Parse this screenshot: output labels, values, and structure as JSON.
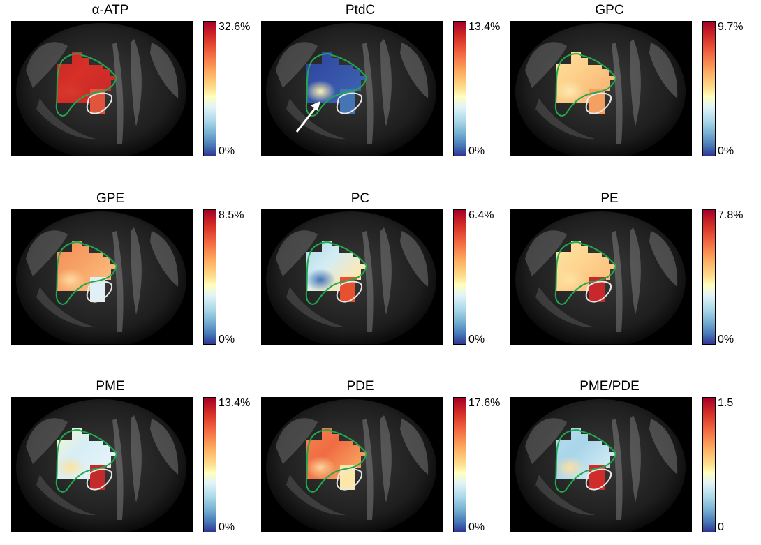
{
  "panels": [
    {
      "title": "α-ATP",
      "max": "32.6%",
      "min": "0%",
      "arrow": false,
      "fill": [
        "#c0262a",
        "#d73027",
        "#cc2b29",
        "#d63a2e",
        "#c42a2a"
      ],
      "tumor": "#e0553c"
    },
    {
      "title": "PtdC",
      "max": "13.4%",
      "min": "0%",
      "arrow": true,
      "fill": [
        "#2c3e9a",
        "#3552a8",
        "#3a5fb0",
        "#fdf2b0",
        "#3a5fb0"
      ],
      "tumor": "#4575b4"
    },
    {
      "title": "GPC",
      "max": "9.7%",
      "min": "0%",
      "arrow": false,
      "fill": [
        "#fde3a0",
        "#fdd08a",
        "#f9b978",
        "#fde9b0",
        "#fbc78a"
      ],
      "tumor": "#f4a060"
    },
    {
      "title": "GPE",
      "max": "8.5%",
      "min": "0%",
      "arrow": false,
      "fill": [
        "#f58a55",
        "#f6a065",
        "#fbb878",
        "#fdd9a0",
        "#f99a5f"
      ],
      "tumor": "#e0f0f6"
    },
    {
      "title": "PC",
      "max": "6.4%",
      "min": "0%",
      "arrow": false,
      "fill": [
        "#abd9e9",
        "#d4ecf4",
        "#fde9b0",
        "#4575b4",
        "#fdba78"
      ],
      "tumor": "#e8512f"
    },
    {
      "title": "PE",
      "max": "7.8%",
      "min": "0%",
      "arrow": false,
      "fill": [
        "#fde7a8",
        "#fdd692",
        "#fcc37f",
        "#fde3a0",
        "#fbb070"
      ],
      "tumor": "#c8282a"
    },
    {
      "title": "PME",
      "max": "13.4%",
      "min": "0%",
      "arrow": false,
      "fill": [
        "#fff6c8",
        "#d6eef6",
        "#e4f3f8",
        "#fde3a0",
        "#fca86a"
      ],
      "tumor": "#c52a2a"
    },
    {
      "title": "PDE",
      "max": "17.6%",
      "min": "0%",
      "arrow": false,
      "fill": [
        "#f4874f",
        "#f06c43",
        "#f79c5c",
        "#fdd49a",
        "#f88d55"
      ],
      "tumor": "#fde7a8"
    },
    {
      "title": "PME/PDE",
      "max": "1.5",
      "min": "0",
      "arrow": false,
      "fill": [
        "#b7dcec",
        "#a9d5ea",
        "#cde8f2",
        "#fde0a0",
        "#f1804c"
      ],
      "tumor": "#d02c2a"
    }
  ]
}
